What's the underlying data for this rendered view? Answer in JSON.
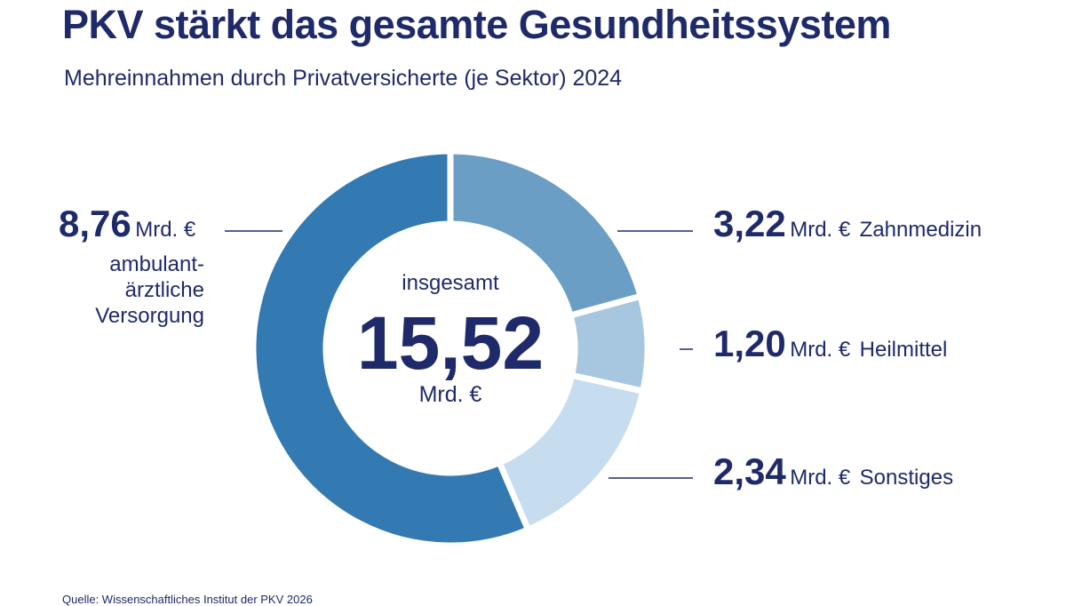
{
  "title": "PKV stärkt das gesamte Gesundheitssystem",
  "subtitle": "Mehreinnahmen durch Privatversicherte (je Sektor) 2024",
  "source": "Quelle: Wissenschaftliches Institut der PKV 2026",
  "chart_data": {
    "type": "pie",
    "donut": true,
    "unit": "Mrd. €",
    "center": {
      "label": "insgesamt",
      "value": "15,52",
      "unit": "Mrd. €"
    },
    "slices": [
      {
        "label": "Zahnmedizin",
        "value": 3.22,
        "display": "3,22",
        "color": "#6a9ec4"
      },
      {
        "label": "Heilmittel",
        "value": 1.2,
        "display": "1,20",
        "color": "#a7c6df"
      },
      {
        "label": "Sonstiges",
        "value": 2.34,
        "display": "2,34",
        "color": "#c6ddf0"
      },
      {
        "label": "ambulant-ärztliche Versorgung",
        "value": 8.76,
        "display": "8,76",
        "color": "#337ab2",
        "lines": [
          "ambulant-",
          "ärztliche",
          "Versorgung"
        ]
      }
    ]
  }
}
